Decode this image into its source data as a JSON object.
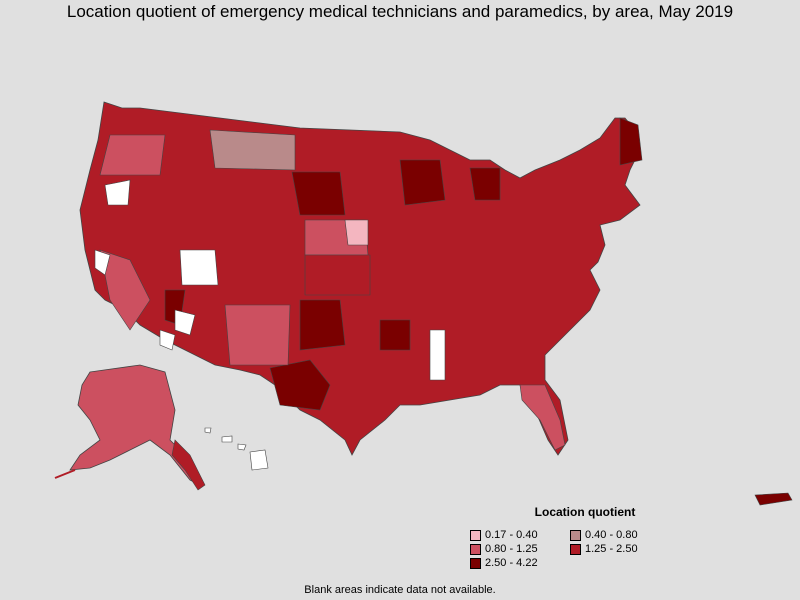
{
  "title": "Location quotient of emergency medical technicians and paramedics, by area, May 2019",
  "legend": {
    "title": "Location quotient",
    "items": [
      {
        "label": "0.17 - 0.40",
        "color": "#f4b6c0"
      },
      {
        "label": "0.40 - 0.80",
        "color": "#b98a8a"
      },
      {
        "label": "0.80 - 1.25",
        "color": "#cc5060"
      },
      {
        "label": "1.25 - 2.50",
        "color": "#b01c26"
      },
      {
        "label": "2.50 - 4.22",
        "color": "#7a0000"
      }
    ]
  },
  "footnote": "Blank areas indicate data not available.",
  "colors": {
    "background": "#e0e0e0",
    "no_data": "#ffffff",
    "border": "#555555"
  }
}
